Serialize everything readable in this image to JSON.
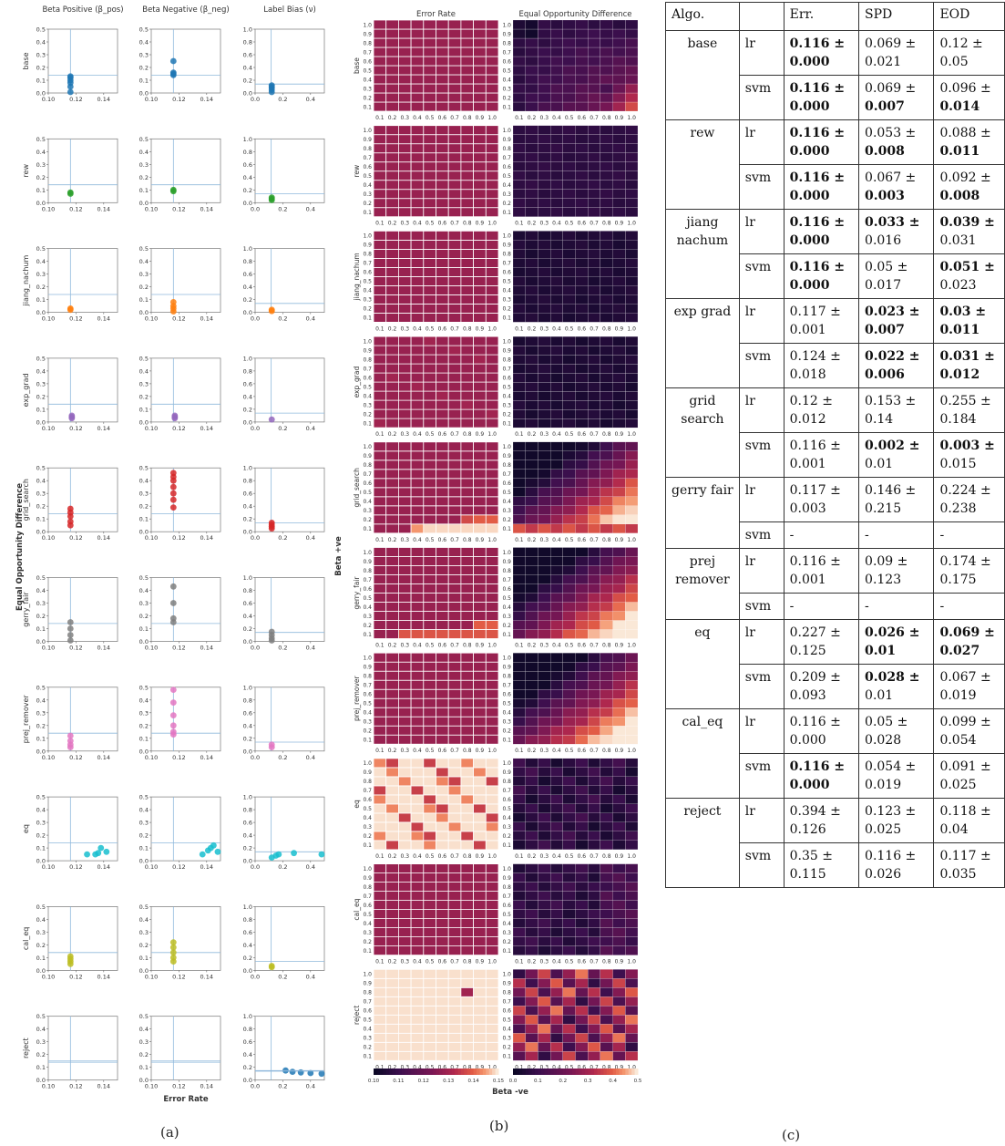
{
  "chart_data": [
    {
      "type": "scatter",
      "panel": "(a)",
      "xlabel": "Error Rate",
      "ylabel": "Equal Opportunity Difference",
      "column_titles": [
        "Beta Positive (β_pos)",
        "Beta Negative (β_neg)",
        "Label Bias (ν)"
      ],
      "row_labels": [
        "base",
        "rew",
        "jiang_nachum",
        "exp_grad",
        "grid_search",
        "gerry_fair",
        "prej_remover",
        "eq",
        "cal_eq",
        "reject"
      ],
      "xlim_beta": [
        0.1,
        0.15
      ],
      "xticks_beta": [
        "0.10",
        "0.12",
        "0.14"
      ],
      "xlim_label": [
        0.0,
        0.5
      ],
      "xticks_label": [
        "0.0",
        "0.2",
        "0.4"
      ],
      "ylim_beta": [
        0.0,
        0.5
      ],
      "yticks_beta": [
        "0.0",
        "0.1",
        "0.2",
        "0.3",
        "0.4",
        "0.5"
      ],
      "ylim_label": [
        0.0,
        1.0
      ],
      "yticks_label": [
        "0.0",
        "0.2",
        "0.4",
        "0.6",
        "0.8",
        "1.0"
      ],
      "ref_lines": {
        "x": 0.116,
        "y_beta": 0.14,
        "y_label_frac": 0.14
      },
      "colors": [
        "#1f77b4",
        "#2ca02c",
        "#ff7f0e",
        "#9467bd",
        "#d62728",
        "#7f7f7f",
        "#e377c2",
        "#17becf",
        "#bcbd22",
        "#1f77b4"
      ],
      "points": {
        "base": {
          "pos": [
            [
              0.116,
              0.0
            ],
            [
              0.116,
              0.05
            ],
            [
              0.116,
              0.08
            ],
            [
              0.116,
              0.1
            ],
            [
              0.116,
              0.12
            ],
            [
              0.116,
              0.13
            ]
          ],
          "neg": [
            [
              0.116,
              0.14
            ],
            [
              0.116,
              0.15
            ],
            [
              0.116,
              0.16
            ],
            [
              0.116,
              0.25
            ]
          ],
          "label": [
            [
              0.12,
              0.0
            ],
            [
              0.12,
              0.05
            ],
            [
              0.12,
              0.08
            ],
            [
              0.12,
              0.1
            ],
            [
              0.12,
              0.12
            ]
          ]
        },
        "rew": {
          "pos": [
            [
              0.116,
              0.07
            ],
            [
              0.116,
              0.08
            ]
          ],
          "neg": [
            [
              0.116,
              0.09
            ],
            [
              0.116,
              0.1
            ]
          ],
          "label": [
            [
              0.12,
              0.04
            ],
            [
              0.12,
              0.06
            ],
            [
              0.12,
              0.08
            ]
          ]
        },
        "jiang_nachum": {
          "pos": [
            [
              0.116,
              0.02
            ],
            [
              0.116,
              0.03
            ]
          ],
          "neg": [
            [
              0.116,
              0.0
            ],
            [
              0.116,
              0.03
            ],
            [
              0.116,
              0.05
            ],
            [
              0.116,
              0.08
            ]
          ],
          "label": [
            [
              0.12,
              0.02
            ],
            [
              0.12,
              0.04
            ]
          ]
        },
        "exp_grad": {
          "pos": [
            [
              0.117,
              0.03
            ],
            [
              0.117,
              0.04
            ],
            [
              0.117,
              0.05
            ]
          ],
          "neg": [
            [
              0.117,
              0.03
            ],
            [
              0.117,
              0.04
            ],
            [
              0.117,
              0.05
            ]
          ],
          "label": [
            [
              0.12,
              0.04
            ]
          ]
        },
        "grid_search": {
          "pos": [
            [
              0.116,
              0.05
            ],
            [
              0.116,
              0.08
            ],
            [
              0.116,
              0.12
            ],
            [
              0.116,
              0.15
            ],
            [
              0.116,
              0.18
            ]
          ],
          "neg": [
            [
              0.116,
              0.19
            ],
            [
              0.116,
              0.25
            ],
            [
              0.116,
              0.3
            ],
            [
              0.116,
              0.35
            ],
            [
              0.116,
              0.4
            ],
            [
              0.116,
              0.43
            ],
            [
              0.116,
              0.46
            ]
          ],
          "label": [
            [
              0.12,
              0.05
            ],
            [
              0.12,
              0.08
            ],
            [
              0.12,
              0.11
            ],
            [
              0.12,
              0.14
            ]
          ]
        },
        "gerry_fair": {
          "pos": [
            [
              0.116,
              0.0
            ],
            [
              0.116,
              0.05
            ],
            [
              0.116,
              0.1
            ],
            [
              0.116,
              0.15
            ]
          ],
          "neg": [
            [
              0.116,
              0.15
            ],
            [
              0.116,
              0.18
            ],
            [
              0.116,
              0.3
            ],
            [
              0.116,
              0.43
            ]
          ],
          "label": [
            [
              0.12,
              0.0
            ],
            [
              0.12,
              0.05
            ],
            [
              0.12,
              0.1
            ],
            [
              0.12,
              0.15
            ]
          ]
        },
        "prej_remover": {
          "pos": [
            [
              0.116,
              0.03
            ],
            [
              0.116,
              0.05
            ],
            [
              0.116,
              0.08
            ],
            [
              0.116,
              0.12
            ]
          ],
          "neg": [
            [
              0.116,
              0.13
            ],
            [
              0.116,
              0.15
            ],
            [
              0.116,
              0.2
            ],
            [
              0.116,
              0.28
            ],
            [
              0.116,
              0.38
            ],
            [
              0.116,
              0.48
            ]
          ],
          "label": [
            [
              0.12,
              0.06
            ],
            [
              0.12,
              0.1
            ]
          ]
        },
        "eq": {
          "pos": [
            [
              0.128,
              0.05
            ],
            [
              0.134,
              0.05
            ],
            [
              0.136,
              0.06
            ],
            [
              0.138,
              0.1
            ],
            [
              0.142,
              0.07
            ]
          ],
          "neg": [
            [
              0.137,
              0.05
            ],
            [
              0.141,
              0.08
            ],
            [
              0.143,
              0.1
            ],
            [
              0.145,
              0.12
            ],
            [
              0.148,
              0.07
            ]
          ],
          "label": [
            [
              0.12,
              0.05
            ],
            [
              0.15,
              0.08
            ],
            [
              0.17,
              0.1
            ],
            [
              0.28,
              0.12
            ],
            [
              0.48,
              0.1
            ]
          ]
        },
        "cal_eq": {
          "pos": [
            [
              0.116,
              0.05
            ],
            [
              0.116,
              0.07
            ],
            [
              0.116,
              0.09
            ],
            [
              0.116,
              0.11
            ]
          ],
          "neg": [
            [
              0.116,
              0.07
            ],
            [
              0.116,
              0.1
            ],
            [
              0.116,
              0.14
            ],
            [
              0.116,
              0.18
            ],
            [
              0.116,
              0.22
            ]
          ],
          "label": [
            [
              0.12,
              0.05
            ],
            [
              0.12,
              0.07
            ]
          ]
        },
        "reject": {
          "pos": [],
          "neg": [],
          "label": [
            [
              0.22,
              0.15
            ],
            [
              0.27,
              0.13
            ],
            [
              0.33,
              0.12
            ],
            [
              0.4,
              0.11
            ],
            [
              0.48,
              0.1
            ]
          ]
        }
      }
    },
    {
      "type": "heatmap",
      "panel": "(b)",
      "column_titles": [
        "Error Rate",
        "Equal Opportunity Difference"
      ],
      "xlabel": "Beta -ve",
      "ylabel": "Beta +ve",
      "row_labels": [
        "base",
        "rew",
        "jiang_nachum",
        "exp_grad",
        "grid_search",
        "gerry_fair",
        "prej_remover",
        "eq",
        "cal_eq",
        "reject"
      ],
      "tick_labels": [
        "0.1",
        "0.2",
        "0.3",
        "0.4",
        "0.5",
        "0.6",
        "0.7",
        "0.8",
        "0.9",
        "1.0"
      ],
      "colorbar_error": {
        "range": [
          0.1,
          0.15
        ],
        "ticks": [
          "0.10",
          "0.11",
          "0.12",
          "0.13",
          "0.14",
          "0.15"
        ]
      },
      "colorbar_eod": {
        "range": [
          0.0,
          0.5
        ],
        "ticks": [
          "0.0",
          "0.1",
          "0.2",
          "0.3",
          "0.4",
          "0.5"
        ]
      }
    }
  ],
  "captions": {
    "a": "(a)",
    "b": "(b)",
    "c": "(c)"
  },
  "table": {
    "headers": [
      "Algo.",
      "",
      "Err.",
      "SPD",
      "EOD"
    ],
    "groups": [
      {
        "algo": "base",
        "rows": [
          {
            "clf": "lr",
            "err": "0.116 ± 0.000",
            "spd": "0.069 ± 0.021",
            "eod": "0.12 ± 0.05",
            "err_bold": "all",
            "spd_bold": "",
            "eod_bold": ""
          },
          {
            "clf": "svm",
            "err": "0.116 ± 0.000",
            "spd": "0.069 ± 0.007",
            "eod": "0.096 ± 0.014",
            "err_bold": "all",
            "spd_bold": "std",
            "eod_bold": "std"
          }
        ]
      },
      {
        "algo": "rew",
        "rows": [
          {
            "clf": "lr",
            "err": "0.116 ± 0.000",
            "spd": "0.053 ± 0.008",
            "eod": "0.088 ± 0.011",
            "err_bold": "all",
            "spd_bold": "std",
            "eod_bold": "std"
          },
          {
            "clf": "svm",
            "err": "0.116 ± 0.000",
            "spd": "0.067 ± 0.003",
            "eod": "0.092 ± 0.008",
            "err_bold": "all",
            "spd_bold": "std",
            "eod_bold": "std"
          }
        ]
      },
      {
        "algo": "jiang nachum",
        "rows": [
          {
            "clf": "lr",
            "err": "0.116 ± 0.000",
            "spd": "0.033 ± 0.016",
            "eod": "0.039 ± 0.031",
            "err_bold": "all",
            "spd_bold": "mean",
            "eod_bold": "mean"
          },
          {
            "clf": "svm",
            "err": "0.116 ± 0.000",
            "spd": "0.05 ± 0.017",
            "eod": "0.051 ± 0.023",
            "err_bold": "all",
            "spd_bold": "",
            "eod_bold": "mean"
          }
        ]
      },
      {
        "algo": "exp grad",
        "rows": [
          {
            "clf": "lr",
            "err": "0.117 ± 0.001",
            "spd": "0.023 ± 0.007",
            "eod": "0.03 ± 0.011",
            "err_bold": "",
            "spd_bold": "all",
            "eod_bold": "all"
          },
          {
            "clf": "svm",
            "err": "0.124 ± 0.018",
            "spd": "0.022 ± 0.006",
            "eod": "0.031 ± 0.012",
            "err_bold": "",
            "spd_bold": "all",
            "eod_bold": "all"
          }
        ]
      },
      {
        "algo": "grid search",
        "rows": [
          {
            "clf": "lr",
            "err": "0.12 ± 0.012",
            "spd": "0.153 ± 0.14",
            "eod": "0.255 ± 0.184",
            "err_bold": "",
            "spd_bold": "",
            "eod_bold": ""
          },
          {
            "clf": "svm",
            "err": "0.116 ± 0.001",
            "spd": "0.002 ± 0.01",
            "eod": "0.003 ± 0.015",
            "err_bold": "",
            "spd_bold": "mean",
            "eod_bold": "mean"
          }
        ]
      },
      {
        "algo": "gerry fair",
        "rows": [
          {
            "clf": "lr",
            "err": "0.117 ± 0.003",
            "spd": "0.146 ± 0.215",
            "eod": "0.224 ± 0.238",
            "err_bold": "",
            "spd_bold": "",
            "eod_bold": ""
          },
          {
            "clf": "svm",
            "err": "-",
            "spd": "-",
            "eod": "-",
            "err_bold": "",
            "spd_bold": "",
            "eod_bold": ""
          }
        ]
      },
      {
        "algo": "prej remover",
        "rows": [
          {
            "clf": "lr",
            "err": "0.116 ± 0.001",
            "spd": "0.09 ± 0.123",
            "eod": "0.174 ± 0.175",
            "err_bold": "",
            "spd_bold": "",
            "eod_bold": ""
          },
          {
            "clf": "svm",
            "err": "-",
            "spd": "-",
            "eod": "-",
            "err_bold": "",
            "spd_bold": "",
            "eod_bold": ""
          }
        ]
      },
      {
        "algo": "eq",
        "rows": [
          {
            "clf": "lr",
            "err": "0.227 ± 0.125",
            "spd": "0.026 ± 0.01",
            "eod": "0.069 ± 0.027",
            "err_bold": "",
            "spd_bold": "all",
            "eod_bold": "all"
          },
          {
            "clf": "svm",
            "err": "0.209 ± 0.093",
            "spd": "0.028 ± 0.01",
            "eod": "0.067 ± 0.019",
            "err_bold": "",
            "spd_bold": "mean",
            "eod_bold": ""
          }
        ]
      },
      {
        "algo": "cal_eq",
        "rows": [
          {
            "clf": "lr",
            "err": "0.116 ± 0.000",
            "spd": "0.05 ± 0.028",
            "eod": "0.099 ± 0.054",
            "err_bold": "",
            "spd_bold": "",
            "eod_bold": ""
          },
          {
            "clf": "svm",
            "err": "0.116 ± 0.000",
            "spd": "0.054 ± 0.019",
            "eod": "0.091 ± 0.025",
            "err_bold": "all",
            "spd_bold": "",
            "eod_bold": ""
          }
        ]
      },
      {
        "algo": "reject",
        "rows": [
          {
            "clf": "lr",
            "err": "0.394 ± 0.126",
            "spd": "0.123 ± 0.025",
            "eod": "0.118 ± 0.04",
            "err_bold": "",
            "spd_bold": "",
            "eod_bold": ""
          },
          {
            "clf": "svm",
            "err": "0.35 ± 0.115",
            "spd": "0.116 ± 0.026",
            "eod": "0.117 ± 0.035",
            "err_bold": "",
            "spd_bold": "",
            "eod_bold": ""
          }
        ]
      }
    ]
  }
}
